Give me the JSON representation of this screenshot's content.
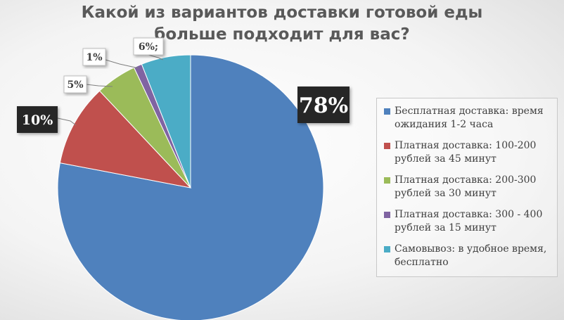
{
  "chart_data": {
    "type": "pie",
    "title": "Какой из вариантов доставки готовой еды больше подходит для вас?",
    "title_lines": [
      "Какой из вариантов доставки готовой еды",
      "больше подходит для вас?"
    ],
    "slices": [
      {
        "name": "Бесплатная доставка: время ожидания 1-2 часа",
        "value": 78,
        "label": "78%",
        "color": "#4f81bd"
      },
      {
        "name": "Платная доставка: 100-200 рублей за 45 минут",
        "value": 10,
        "label": "10%",
        "color": "#c0504d"
      },
      {
        "name": "Платная доставка: 200-300 рублей за 30 минут",
        "value": 5,
        "label": "5%",
        "color": "#9bbb59"
      },
      {
        "name": "Платная доставка: 300 - 400 рублей за 15 минут",
        "value": 1,
        "label": "1%",
        "color": "#8064a2"
      },
      {
        "name": "Самовывоз: в удобное время, бесплатно",
        "value": 6,
        "label": "6%;",
        "color": "#4bacc6"
      }
    ],
    "legend_position": "right"
  }
}
